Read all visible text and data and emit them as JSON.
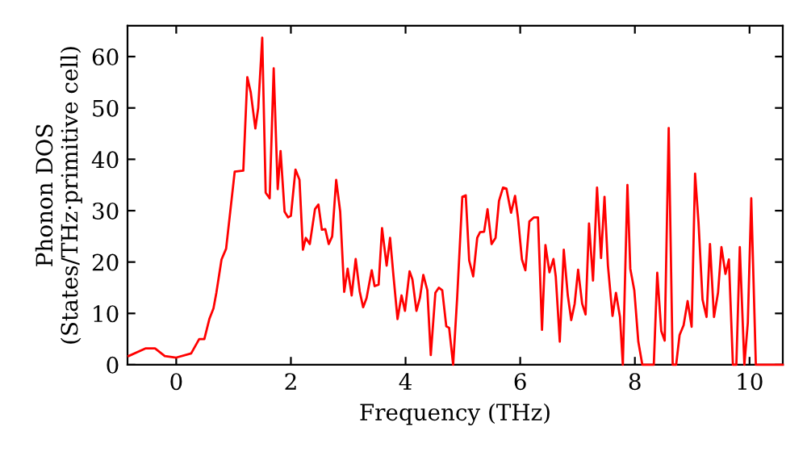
{
  "chart_data": {
    "type": "line",
    "xlabel": "Frequency (THz)",
    "ylabel": "Phonon DOS\n(States/THz·primitive cell)",
    "xlim": [
      -0.85,
      10.58
    ],
    "ylim": [
      0,
      66
    ],
    "xticks": [
      0,
      2,
      4,
      6,
      8,
      10
    ],
    "yticks": [
      0,
      10,
      20,
      30,
      40,
      50,
      60
    ],
    "grid": false,
    "legend": false,
    "marker": "none",
    "line_style": "solid",
    "series": [
      {
        "color": "#ff0000",
        "x": [
          -0.83,
          -0.53,
          -0.37,
          -0.2,
          0,
          0.26,
          0.4,
          0.49,
          0.58,
          0.65,
          0.7,
          0.79,
          0.87,
          1.02,
          1.17,
          1.24,
          1.3,
          1.38,
          1.43,
          1.5,
          1.56,
          1.63,
          1.7,
          1.77,
          1.82,
          1.89,
          1.95,
          2.0,
          2.08,
          2.15,
          2.21,
          2.26,
          2.33,
          2.42,
          2.48,
          2.54,
          2.6,
          2.66,
          2.72,
          2.79,
          2.86,
          2.93,
          2.99,
          3.06,
          3.13,
          3.2,
          3.26,
          3.32,
          3.41,
          3.46,
          3.53,
          3.59,
          3.67,
          3.73,
          3.79,
          3.86,
          3.93,
          3.99,
          4.07,
          4.12,
          4.19,
          4.25,
          4.31,
          4.38,
          4.44,
          4.52,
          4.58,
          4.64,
          4.71,
          4.76,
          4.83,
          4.9,
          4.99,
          5.05,
          5.11,
          5.18,
          5.25,
          5.3,
          5.37,
          5.43,
          5.5,
          5.57,
          5.63,
          5.7,
          5.76,
          5.84,
          5.91,
          5.96,
          6.03,
          6.09,
          6.16,
          6.24,
          6.31,
          6.38,
          6.44,
          6.51,
          6.58,
          6.62,
          6.69,
          6.76,
          6.83,
          6.89,
          6.95,
          7.01,
          7.08,
          7.14,
          7.2,
          7.27,
          7.34,
          7.41,
          7.47,
          7.53,
          7.61,
          7.67,
          7.74,
          7.79,
          7.87,
          7.92,
          7.99,
          8.06,
          8.13,
          8.33,
          8.39,
          8.46,
          8.52,
          8.59,
          8.66,
          8.72,
          8.78,
          8.85,
          8.92,
          8.99,
          9.05,
          9.11,
          9.18,
          9.25,
          9.31,
          9.38,
          9.45,
          9.51,
          9.58,
          9.64,
          9.71,
          9.77,
          9.83,
          9.91,
          9.97,
          10.03,
          10.11,
          10.58
        ],
        "values": [
          1.7,
          3.2,
          3.2,
          1.7,
          1.4,
          2.2,
          5,
          5,
          9,
          11,
          14,
          20.5,
          22.6,
          37.6,
          37.8,
          56,
          53,
          46,
          50,
          63.7,
          33.5,
          32.4,
          57.7,
          34.2,
          41.6,
          29.8,
          28.7,
          29,
          38,
          36,
          22.4,
          24.7,
          23.5,
          30.3,
          31.2,
          26.3,
          26.4,
          23.5,
          25,
          36,
          29.8,
          14.2,
          18.7,
          13.5,
          20.6,
          14.3,
          11.2,
          13,
          18.4,
          15.3,
          15.6,
          26.6,
          19.3,
          24.7,
          17.2,
          8.9,
          13.5,
          10.5,
          18.2,
          16.6,
          10.5,
          13,
          17.5,
          14.5,
          1.9,
          14,
          15,
          14.5,
          7.5,
          7.2,
          0,
          13,
          32.7,
          33,
          20.3,
          17.2,
          24.7,
          25.8,
          25.9,
          30.3,
          23.5,
          24.7,
          31.9,
          34.5,
          34.3,
          29.6,
          32.9,
          28.7,
          20.5,
          18.4,
          27.9,
          28.7,
          28.7,
          6.8,
          23.3,
          18,
          20.6,
          17.2,
          4.5,
          22.4,
          13.5,
          8.7,
          11.9,
          18.5,
          11.9,
          9.8,
          27.5,
          16.4,
          34.5,
          20.8,
          32.7,
          19.3,
          9.5,
          14,
          9.3,
          0,
          35,
          18.7,
          14.5,
          4.5,
          0,
          0,
          17.9,
          6.6,
          4.7,
          46.1,
          0,
          0,
          5.8,
          7.7,
          12.4,
          7.4,
          37.2,
          27.7,
          12.7,
          9.3,
          23.5,
          9.3,
          14,
          22.9,
          17.7,
          20.5,
          0,
          0,
          22.9,
          0,
          8.2,
          32.4,
          0,
          0
        ]
      }
    ]
  }
}
